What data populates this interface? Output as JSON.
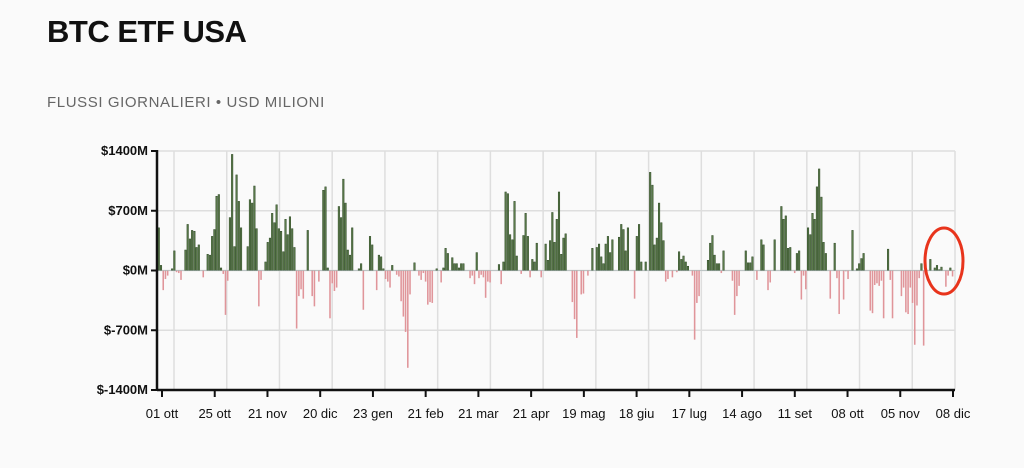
{
  "header": {
    "title": "BTC ETF USA",
    "subtitle": "FLUSSI GIORNALIERI • USD MILIONI"
  },
  "chart_data": {
    "type": "bar",
    "title": "BTC ETF USA",
    "subtitle": "FLUSSI GIORNALIERI • USD MILIONI",
    "ylim": [
      -1400,
      1400
    ],
    "yticks": [
      1400,
      700,
      0,
      -700,
      -1400
    ],
    "ytick_labels": [
      "$1400M",
      "$700M",
      "$0M",
      "$-700M",
      "$-1400M"
    ],
    "xtick_labels": [
      "01 ott",
      "25 ott",
      "21 nov",
      "20 dic",
      "23 gen",
      "21 feb",
      "21 mar",
      "21 apr",
      "19 mag",
      "18 giu",
      "17 lug",
      "14 ago",
      "11 set",
      "08 ott",
      "05 nov",
      "08 dic"
    ],
    "grid": true,
    "colors": {
      "positive": "#5a7a4a",
      "positive_stroke": "#2f4a26",
      "negative": "#e0959a",
      "annotation": "#e8341c"
    },
    "annotation": "red circle around most recent flows",
    "values": [
      500,
      60,
      -230,
      -100,
      -60,
      0,
      20,
      230,
      -20,
      -30,
      -110,
      0,
      240,
      540,
      370,
      470,
      460,
      270,
      300,
      0,
      -80,
      0,
      190,
      180,
      400,
      480,
      870,
      890,
      30,
      -40,
      -520,
      -120,
      620,
      1360,
      280,
      1120,
      810,
      500,
      0,
      0,
      280,
      830,
      790,
      990,
      490,
      -420,
      -110,
      0,
      100,
      330,
      380,
      670,
      560,
      770,
      490,
      460,
      220,
      600,
      420,
      630,
      490,
      270,
      -680,
      -300,
      -220,
      -330,
      0,
      470,
      0,
      -300,
      -420,
      0,
      -130,
      0,
      940,
      980,
      30,
      -560,
      -150,
      -240,
      -200,
      750,
      620,
      1070,
      790,
      240,
      180,
      500,
      0,
      0,
      20,
      80,
      -460,
      0,
      0,
      400,
      300,
      0,
      -230,
      180,
      160,
      20,
      -100,
      -130,
      -200,
      60,
      0,
      -50,
      -70,
      -360,
      -540,
      -720,
      -1140,
      -280,
      0,
      90,
      0,
      -60,
      -110,
      -30,
      -130,
      -400,
      -370,
      -380,
      0,
      20,
      0,
      -140,
      30,
      260,
      200,
      0,
      150,
      80,
      80,
      30,
      80,
      80,
      0,
      0,
      -90,
      -60,
      -160,
      210,
      -90,
      -50,
      -80,
      -320,
      -130,
      -140,
      0,
      0,
      0,
      70,
      -160,
      100,
      920,
      900,
      420,
      360,
      810,
      170,
      0,
      -40,
      410,
      670,
      400,
      -80,
      130,
      100,
      320,
      0,
      -80,
      0,
      310,
      120,
      350,
      680,
      330,
      600,
      920,
      190,
      380,
      430,
      0,
      0,
      -370,
      -570,
      -790,
      0,
      -280,
      -270,
      0,
      -60,
      0,
      260,
      0,
      270,
      310,
      160,
      80,
      310,
      400,
      210,
      360,
      0,
      0,
      390,
      540,
      480,
      230,
      500,
      0,
      0,
      -330,
      400,
      540,
      100,
      0,
      100,
      0,
      1150,
      1000,
      300,
      380,
      790,
      560,
      350,
      -130,
      -100,
      0,
      -80,
      0,
      -20,
      220,
      130,
      170,
      100,
      50,
      0,
      -60,
      -810,
      -380,
      -300,
      0,
      0,
      0,
      120,
      320,
      410,
      180,
      80,
      80,
      -30,
      230,
      0,
      0,
      0,
      -120,
      -520,
      -300,
      -180,
      0,
      0,
      230,
      90,
      90,
      160,
      0,
      -110,
      0,
      360,
      300,
      0,
      -230,
      -140,
      0,
      360,
      0,
      0,
      750,
      600,
      640,
      260,
      270,
      0,
      -30,
      200,
      230,
      -340,
      -60,
      -220,
      500,
      420,
      670,
      600,
      980,
      1190,
      860,
      330,
      200,
      0,
      -330,
      0,
      320,
      -90,
      -510,
      0,
      -340,
      -10,
      -100,
      0,
      470,
      0,
      20,
      80,
      140,
      200,
      0,
      0,
      -470,
      -500,
      -170,
      -150,
      -180,
      -120,
      -560,
      0,
      250,
      -110,
      -560,
      0,
      0,
      0,
      -300,
      -200,
      -490,
      -510,
      -200,
      -380,
      -870,
      -410,
      -90,
      80,
      -880,
      0,
      0,
      130,
      0,
      30,
      60,
      10,
      40,
      0,
      -190,
      -60,
      30,
      -70
    ]
  }
}
